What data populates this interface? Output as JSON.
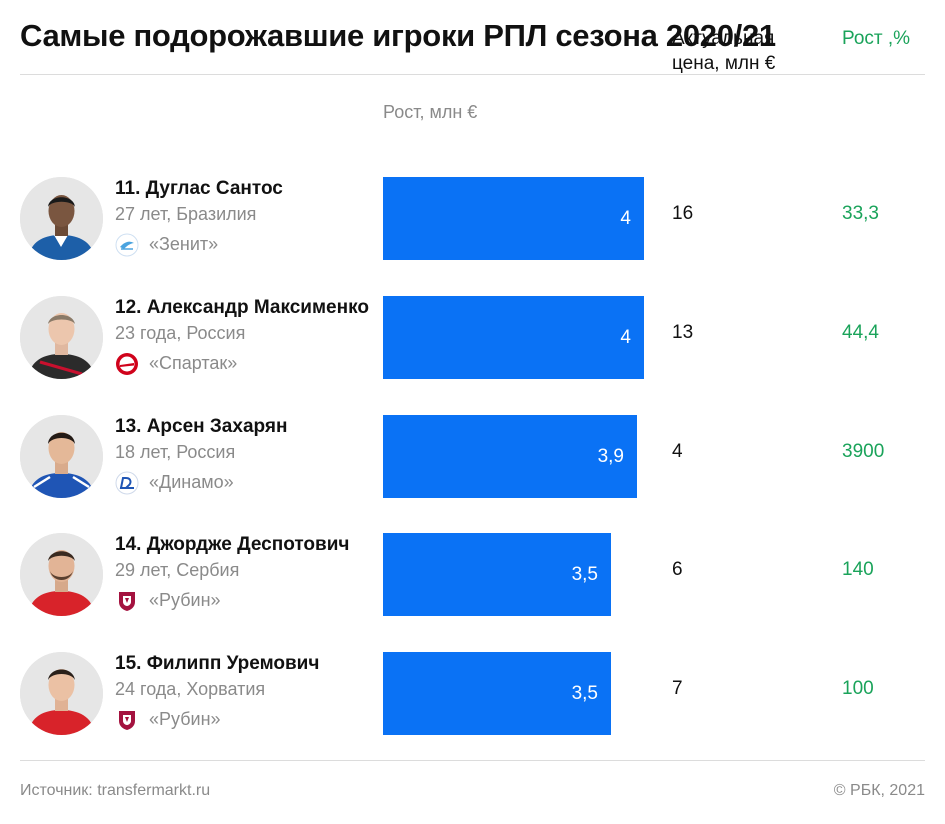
{
  "title": "Самые подорожавшие игроки РПЛ сезона 2020/21",
  "columns": {
    "growth": "Рост, млн €",
    "price_line1": "Актуальная",
    "price_line2": "цена, млн €",
    "pct": "Рост ,%"
  },
  "players": [
    {
      "name": "11. Дуглас Сантос",
      "info": "27 лет, Бразилия",
      "club": "«Зенит»",
      "club_icon": "zenit-logo-icon",
      "price": "16",
      "pct": "33,3"
    },
    {
      "name": "12. Александр Максименко",
      "info": "23 года, Россия",
      "club": "«Спартак»",
      "club_icon": "spartak-logo-icon",
      "price": "13",
      "pct": "44,4"
    },
    {
      "name": "13. Арсен Захарян",
      "info": "18 лет, Россия",
      "club": "«Динамо»",
      "club_icon": "dinamo-logo-icon",
      "price": "4",
      "pct": "3900"
    },
    {
      "name": "14. Джордже Деспотович",
      "info": "29 лет, Сербия",
      "club": "«Рубин»",
      "club_icon": "rubin-logo-icon",
      "price": "6",
      "pct": "140"
    },
    {
      "name": "15. Филипп Уремович",
      "info": "24 года, Хорватия",
      "club": "«Рубин»",
      "club_icon": "rubin-logo-icon",
      "price": "7",
      "pct": "100"
    }
  ],
  "chart_data": {
    "type": "bar",
    "orientation": "horizontal",
    "categories": [
      "11. Дуглас Сантос",
      "12. Александр Максименко",
      "13. Арсен Захарян",
      "14. Джордже Деспотович",
      "15. Филипп Уремович"
    ],
    "values": [
      4,
      4,
      3.9,
      3.5,
      3.5
    ],
    "value_labels": [
      "4",
      "4",
      "3,9",
      "3,5",
      "3,5"
    ],
    "title": "Рост, млн €",
    "bar_color": "#0a72f5",
    "xlim": [
      0,
      4
    ]
  },
  "colors": {
    "bar": "#0a72f5",
    "positive": "#1aa35a",
    "muted": "#8a8a8a"
  },
  "footer": {
    "source": "Источник: transfermarkt.ru",
    "copyright": "© РБК, 2021"
  }
}
